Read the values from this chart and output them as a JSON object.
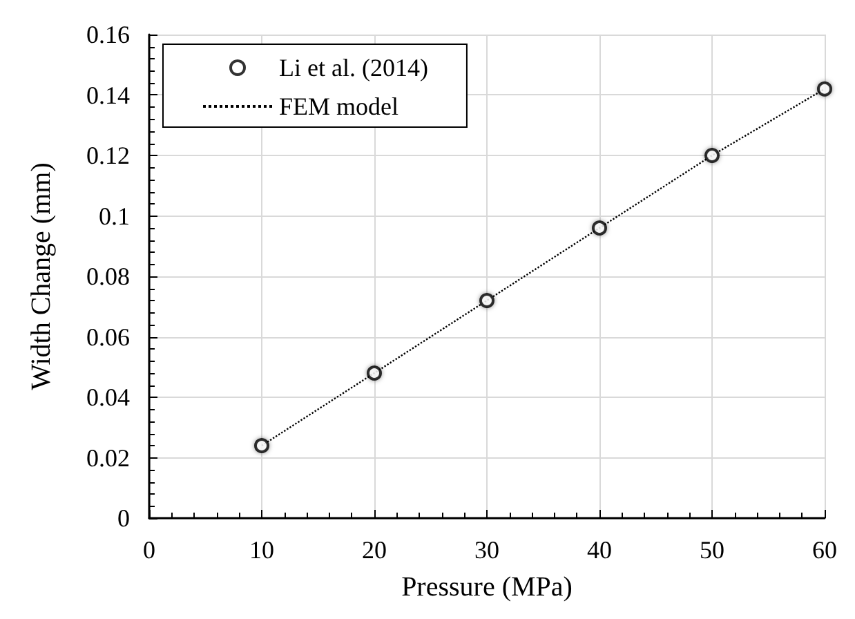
{
  "chart_data": {
    "type": "scatter",
    "xlabel": "Pressure (MPa)",
    "ylabel": "Width Change (mm)",
    "x": [
      10,
      20,
      30,
      40,
      50,
      60
    ],
    "series": [
      {
        "name": "Li et al. (2014)",
        "color": "#000000",
        "marker": "circle",
        "values": [
          0.024,
          0.048,
          0.072,
          0.096,
          0.12,
          0.142
        ]
      },
      {
        "name": "FEM model",
        "type": "line",
        "color": "#000000",
        "marker": "none",
        "line_style": "dotted",
        "values": [
          0.024,
          0.048,
          0.072,
          0.096,
          0.12,
          0.142
        ]
      }
    ],
    "xlim": [
      0,
      60
    ],
    "xticks": [
      0,
      10,
      20,
      30,
      40,
      50,
      60
    ],
    "ylim": [
      0,
      0.16
    ],
    "yticks": [
      0,
      0.02,
      0.04,
      0.06,
      0.08,
      0.1,
      0.12,
      0.14,
      0.16
    ],
    "grid": true,
    "legend": "top left"
  }
}
